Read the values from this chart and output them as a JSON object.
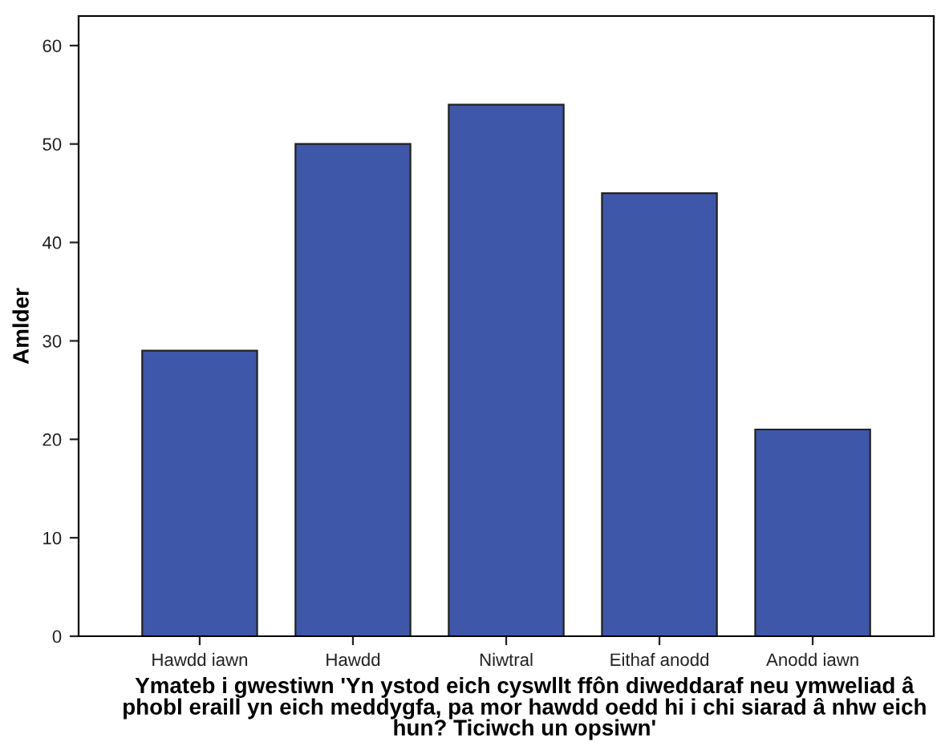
{
  "chart_data": {
    "type": "bar",
    "xlabel": "Ymateb i gwestiwn 'Yn ystod eich cyswllt ffôn diweddaraf neu ymweliad â phobl eraill yn eich meddygfa, pa mor hawdd oedd hi i chi siarad â nhw eich hun? Ticiwch un opsiwn'",
    "ylabel": "Amlder",
    "categories": [
      "Hawdd iawn",
      "Hawdd",
      "Niwtral",
      "Eithaf anodd",
      "Anodd iawn"
    ],
    "values": [
      29,
      50,
      54,
      45,
      21
    ],
    "color": "#3f57a8",
    "ylim": [
      0,
      63
    ],
    "yticks": [
      0,
      10,
      20,
      30,
      40,
      50,
      60
    ],
    "grid": false,
    "legend": false
  }
}
